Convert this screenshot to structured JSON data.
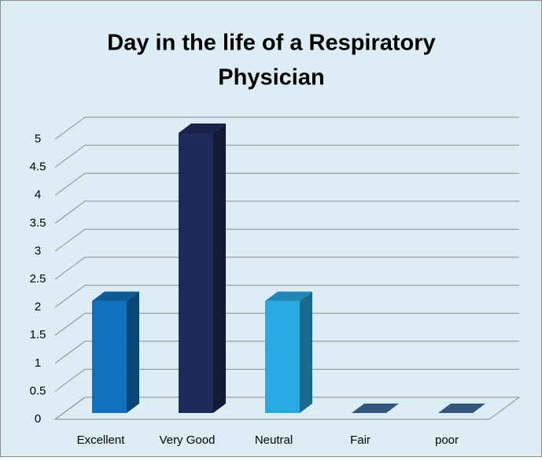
{
  "chart_data": {
    "type": "bar3d",
    "title": [
      "Day in the life of a Respiratory",
      "Physician"
    ],
    "categories": [
      "Excellent",
      "Very Good",
      "Neutral",
      "Fair",
      "poor"
    ],
    "values": [
      2,
      5,
      2,
      0,
      0
    ],
    "colors": [
      "#1170bb",
      "#1f2a5c",
      "#29abe2",
      "#3e6a9a",
      "#3e6a9a"
    ],
    "ylim": [
      0,
      5
    ],
    "yticks": [
      0,
      0.5,
      1,
      1.5,
      2,
      2.5,
      3,
      3.5,
      4,
      4.5,
      5
    ],
    "grid": true
  }
}
